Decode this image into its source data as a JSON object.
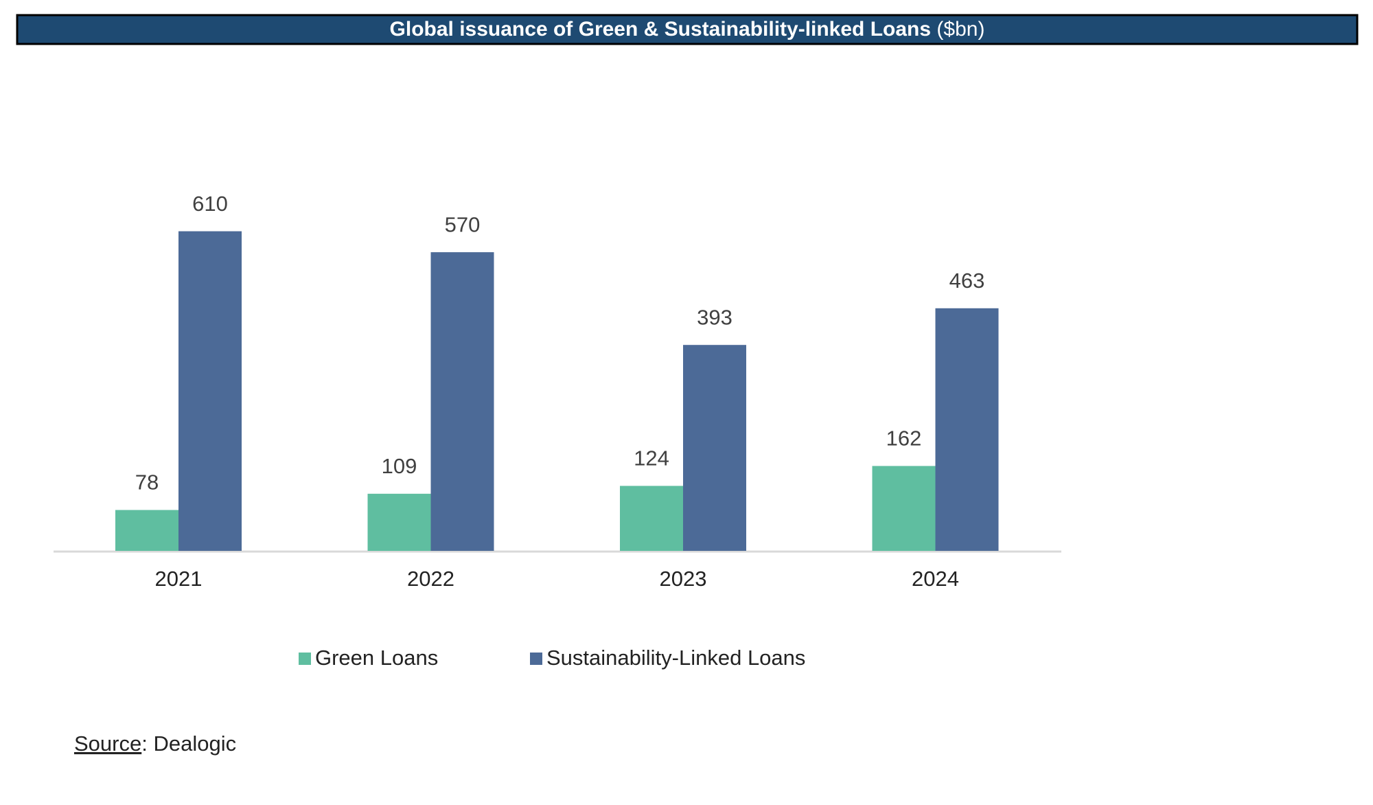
{
  "chart_data": {
    "type": "bar",
    "title": "Global issuance of Green & Sustainability-linked Loans",
    "title_unit": "($bn)",
    "categories": [
      "2021",
      "2022",
      "2023",
      "2024"
    ],
    "series": [
      {
        "name": "Green Loans",
        "color": "#5fbea0",
        "values": [
          78,
          109,
          124,
          162
        ]
      },
      {
        "name": "Sustainability-Linked Loans",
        "color": "#4c6a97",
        "values": [
          610,
          570,
          393,
          463
        ]
      }
    ],
    "ylim": [
      0,
      700
    ],
    "source": {
      "label": "Source",
      "text": ": Dealogic"
    }
  }
}
